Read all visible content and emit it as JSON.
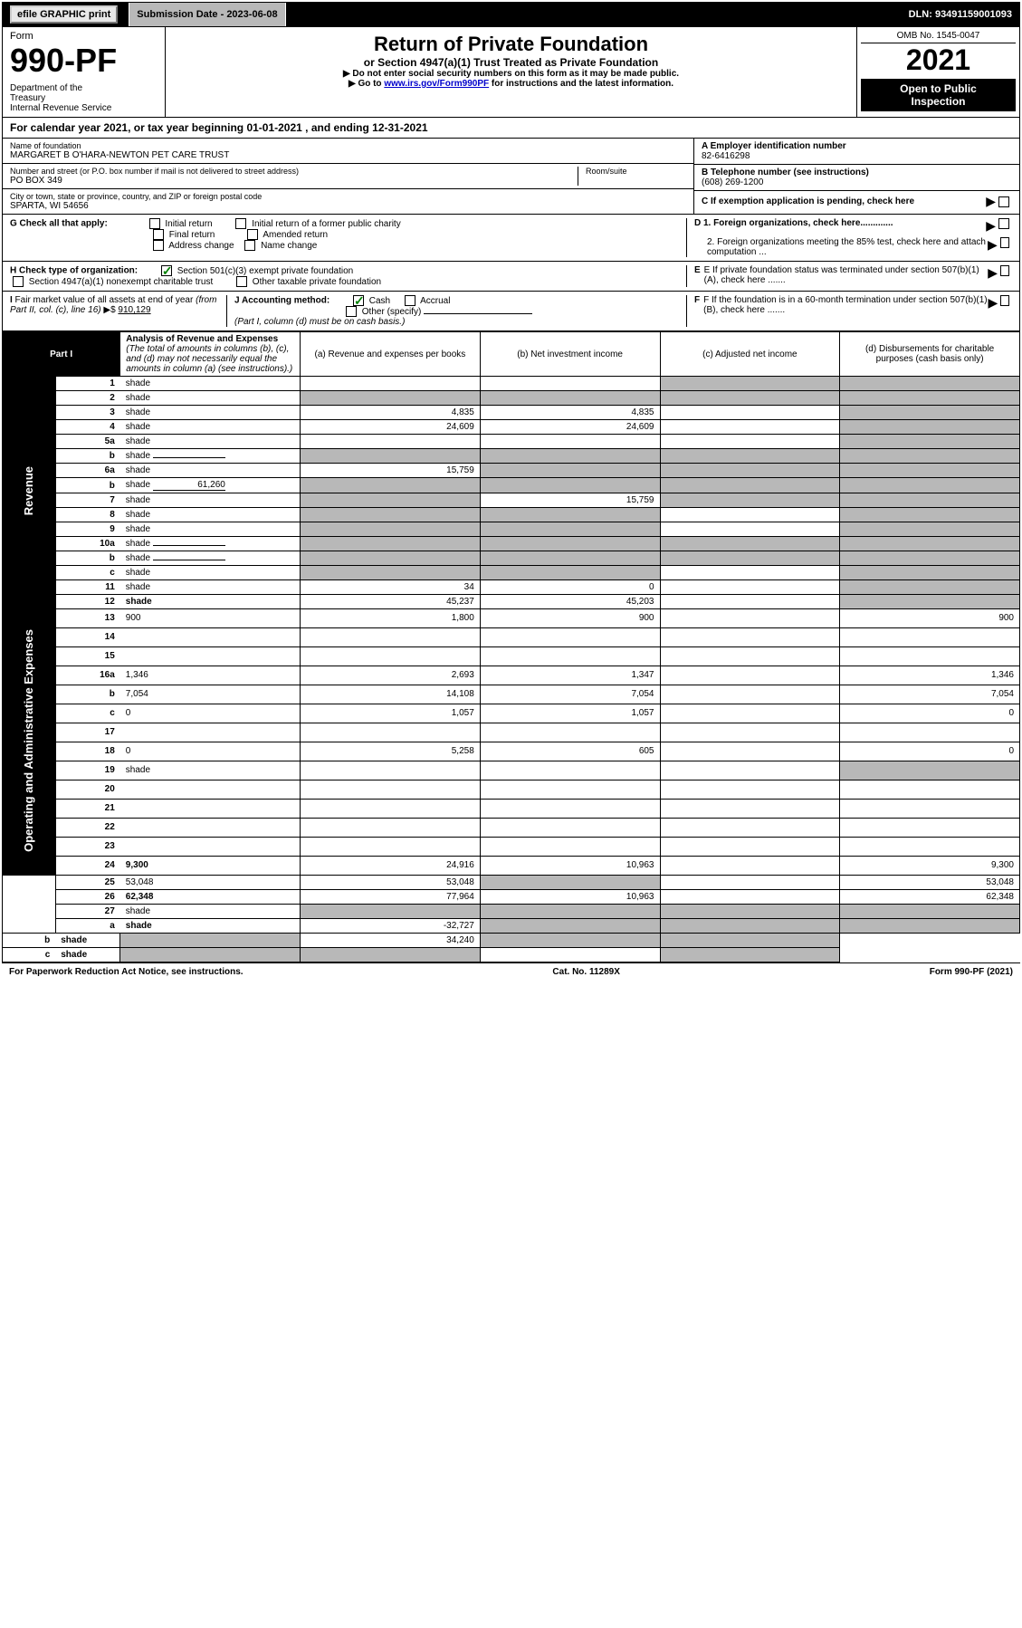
{
  "top": {
    "efile": "efile GRAPHIC print",
    "submission": "Submission Date - 2023-06-08",
    "dln": "DLN: 93491159001093"
  },
  "header": {
    "form_label": "Form",
    "form_num": "990-PF",
    "dept": "Department of the Treasury\nInternal Revenue Service",
    "title": "Return of Private Foundation",
    "subtitle": "or Section 4947(a)(1) Trust Treated as Private Foundation",
    "instr1": "▶ Do not enter social security numbers on this form as it may be made public.",
    "instr2_pre": "▶ Go to ",
    "instr2_link": "www.irs.gov/Form990PF",
    "instr2_post": " for instructions and the latest information.",
    "omb": "OMB No. 1545-0047",
    "year": "2021",
    "inspect": "Open to Public Inspection"
  },
  "calyear": "For calendar year 2021, or tax year beginning 01-01-2021               , and ending 12-31-2021",
  "info": {
    "name_label": "Name of foundation",
    "name": "MARGARET B O'HARA-NEWTON PET CARE TRUST",
    "addr_label": "Number and street (or P.O. box number if mail is not delivered to street address)",
    "addr": "PO BOX 349",
    "room_label": "Room/suite",
    "city_label": "City or town, state or province, country, and ZIP or foreign postal code",
    "city": "SPARTA, WI  54656",
    "a_label": "A Employer identification number",
    "a_val": "82-6416298",
    "b_label": "B Telephone number (see instructions)",
    "b_val": "(608) 269-1200",
    "c_label": "C If exemption application is pending, check here"
  },
  "checks": {
    "g": "G Check all that apply:",
    "g_opts": [
      "Initial return",
      "Initial return of a former public charity",
      "Final return",
      "Amended return",
      "Address change",
      "Name change"
    ],
    "h": "H Check type of organization:",
    "h1": "Section 501(c)(3) exempt private foundation",
    "h2": "Section 4947(a)(1) nonexempt charitable trust",
    "h3": "Other taxable private foundation",
    "i": "I Fair market value of all assets at end of year (from Part II, col. (c), line 16) ▶$ ",
    "i_val": "910,129",
    "j": "J Accounting method:",
    "j_cash": "Cash",
    "j_accrual": "Accrual",
    "j_other": "Other (specify)",
    "j_note": "(Part I, column (d) must be on cash basis.)",
    "d1": "D 1. Foreign organizations, check here.............",
    "d2": "2. Foreign organizations meeting the 85% test, check here and attach computation ...",
    "e": "E If private foundation status was terminated under section 507(b)(1)(A), check here .......",
    "f": "F If the foundation is in a 60-month termination under section 507(b)(1)(B), check here ......."
  },
  "part1": {
    "label": "Part I",
    "title": "Analysis of Revenue and Expenses",
    "title_note": "(The total of amounts in columns (b), (c), and (d) may not necessarily equal the amounts in column (a) (see instructions).)",
    "col_a": "(a) Revenue and expenses per books",
    "col_b": "(b) Net investment income",
    "col_c": "(c) Adjusted net income",
    "col_d": "(d) Disbursements for charitable purposes (cash basis only)"
  },
  "sections": {
    "revenue": "Revenue",
    "expenses": "Operating and Administrative Expenses"
  },
  "rows": [
    {
      "n": "1",
      "d": "shade",
      "a": "",
      "b": "",
      "c": "shade"
    },
    {
      "n": "2",
      "d": "shade",
      "a": "shade",
      "b": "shade",
      "c": "shade",
      "bold_not": true
    },
    {
      "n": "3",
      "d": "shade",
      "a": "4,835",
      "b": "4,835",
      "c": ""
    },
    {
      "n": "4",
      "d": "shade",
      "a": "24,609",
      "b": "24,609",
      "c": ""
    },
    {
      "n": "5a",
      "d": "shade",
      "a": "",
      "b": "",
      "c": ""
    },
    {
      "n": "b",
      "d": "shade",
      "a": "shade",
      "b": "shade",
      "c": "shade",
      "inline": true
    },
    {
      "n": "6a",
      "d": "shade",
      "a": "15,759",
      "b": "shade",
      "c": "shade"
    },
    {
      "n": "b",
      "d": "shade",
      "a": "shade",
      "b": "shade",
      "c": "shade",
      "inline": true,
      "inline_val": "61,260"
    },
    {
      "n": "7",
      "d": "shade",
      "a": "shade",
      "b": "15,759",
      "c": "shade"
    },
    {
      "n": "8",
      "d": "shade",
      "a": "shade",
      "b": "shade",
      "c": ""
    },
    {
      "n": "9",
      "d": "shade",
      "a": "shade",
      "b": "shade",
      "c": ""
    },
    {
      "n": "10a",
      "d": "shade",
      "a": "shade",
      "b": "shade",
      "c": "shade",
      "inline": true
    },
    {
      "n": "b",
      "d": "shade",
      "a": "shade",
      "b": "shade",
      "c": "shade",
      "inline": true
    },
    {
      "n": "c",
      "d": "shade",
      "a": "shade",
      "b": "shade",
      "c": ""
    },
    {
      "n": "11",
      "d": "shade",
      "a": "34",
      "b": "0",
      "c": ""
    },
    {
      "n": "12",
      "d": "shade",
      "a": "45,237",
      "b": "45,203",
      "c": "",
      "bold": true
    },
    {
      "n": "13",
      "d": "900",
      "a": "1,800",
      "b": "900",
      "c": ""
    },
    {
      "n": "14",
      "d": "",
      "a": "",
      "b": "",
      "c": ""
    },
    {
      "n": "15",
      "d": "",
      "a": "",
      "b": "",
      "c": ""
    },
    {
      "n": "16a",
      "d": "1,346",
      "a": "2,693",
      "b": "1,347",
      "c": ""
    },
    {
      "n": "b",
      "d": "7,054",
      "a": "14,108",
      "b": "7,054",
      "c": ""
    },
    {
      "n": "c",
      "d": "0",
      "a": "1,057",
      "b": "1,057",
      "c": ""
    },
    {
      "n": "17",
      "d": "",
      "a": "",
      "b": "",
      "c": ""
    },
    {
      "n": "18",
      "d": "0",
      "a": "5,258",
      "b": "605",
      "c": ""
    },
    {
      "n": "19",
      "d": "shade",
      "a": "",
      "b": "",
      "c": ""
    },
    {
      "n": "20",
      "d": "",
      "a": "",
      "b": "",
      "c": ""
    },
    {
      "n": "21",
      "d": "",
      "a": "",
      "b": "",
      "c": ""
    },
    {
      "n": "22",
      "d": "",
      "a": "",
      "b": "",
      "c": ""
    },
    {
      "n": "23",
      "d": "",
      "a": "",
      "b": "",
      "c": ""
    },
    {
      "n": "24",
      "d": "9,300",
      "a": "24,916",
      "b": "10,963",
      "c": "",
      "bold": true
    },
    {
      "n": "25",
      "d": "53,048",
      "a": "53,048",
      "b": "shade",
      "c": ""
    },
    {
      "n": "26",
      "d": "62,348",
      "a": "77,964",
      "b": "10,963",
      "c": "",
      "bold": true
    },
    {
      "n": "27",
      "d": "shade",
      "a": "shade",
      "b": "shade",
      "c": "shade"
    },
    {
      "n": "a",
      "d": "shade",
      "a": "-32,727",
      "b": "shade",
      "c": "shade",
      "bold": true
    },
    {
      "n": "b",
      "d": "shade",
      "a": "shade",
      "b": "34,240",
      "c": "shade",
      "bold": true
    },
    {
      "n": "c",
      "d": "shade",
      "a": "shade",
      "b": "shade",
      "c": "",
      "bold": true
    }
  ],
  "footer": {
    "left": "For Paperwork Reduction Act Notice, see instructions.",
    "mid": "Cat. No. 11289X",
    "right": "Form 990-PF (2021)"
  }
}
